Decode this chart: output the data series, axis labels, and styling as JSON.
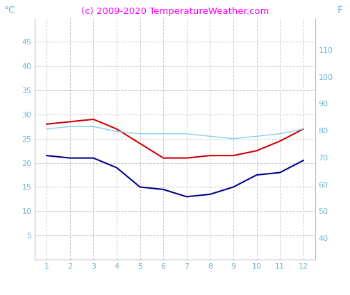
{
  "months": [
    1,
    2,
    3,
    4,
    5,
    6,
    7,
    8,
    9,
    10,
    11,
    12
  ],
  "temp_high": [
    28.0,
    28.5,
    29.0,
    27.0,
    24.0,
    21.0,
    21.0,
    21.5,
    21.5,
    22.5,
    24.5,
    27.0
  ],
  "temp_low": [
    21.5,
    21.0,
    21.0,
    19.0,
    15.0,
    14.5,
    13.0,
    13.5,
    15.0,
    17.5,
    18.0,
    20.5
  ],
  "temp_water": [
    27.0,
    27.5,
    27.5,
    26.5,
    26.0,
    26.0,
    26.0,
    25.5,
    25.0,
    25.5,
    26.0,
    27.0
  ],
  "color_high": "#cc0000",
  "color_low": "#00008b",
  "color_water": "#87ceeb",
  "title": "(c) 2009-2020 TemperatureWeather.com",
  "title_color": "#ff00ff",
  "ylabel_left": "°C",
  "ylabel_right": "F",
  "ylabel_color": "#6eb5d4",
  "ylim_left": [
    0,
    50
  ],
  "ylim_right": [
    32,
    122
  ],
  "yticks_left": [
    5,
    10,
    15,
    20,
    25,
    30,
    35,
    40,
    45
  ],
  "yticks_right": [
    40,
    50,
    60,
    70,
    80,
    90,
    100,
    110
  ],
  "xticks": [
    1,
    2,
    3,
    4,
    5,
    6,
    7,
    8,
    9,
    10,
    11,
    12
  ],
  "grid_color": "#cccccc",
  "bg_color": "#ffffff",
  "tick_color": "#6eb5d4",
  "title_fontsize": 9.5,
  "tick_fontsize": 8
}
